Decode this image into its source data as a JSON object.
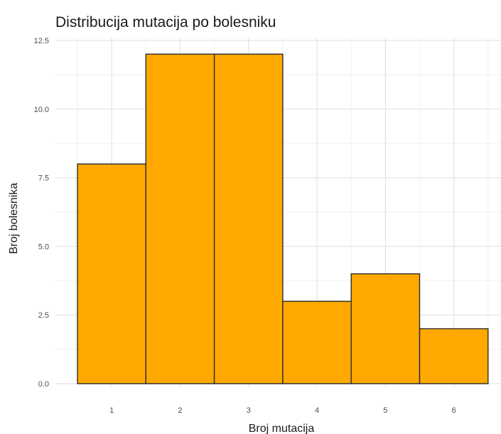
{
  "chart_data": {
    "type": "bar",
    "title": "Distribucija mutacija po bolesniku",
    "xlabel": "Broj mutacija",
    "ylabel": "Broj bolesnika",
    "categories": [
      "1",
      "2",
      "3",
      "4",
      "5",
      "6"
    ],
    "values": [
      8,
      12,
      12,
      3,
      4,
      2
    ],
    "x_ticks": [
      "1",
      "2",
      "3",
      "4",
      "5",
      "6"
    ],
    "y_ticks": [
      "0.0",
      "2.5",
      "5.0",
      "7.5",
      "10.0",
      "12.5"
    ],
    "y_tick_values": [
      0,
      2.5,
      5,
      7.5,
      10,
      12.5
    ],
    "ylim": [
      0,
      12.5
    ],
    "grid": true,
    "legend": "none",
    "colors": {
      "bar_fill": "#FFA900",
      "bar_stroke": "#2b2b2b",
      "grid_major": "#e3e3e3",
      "grid_minor": "#f1f1f1",
      "background": "#ffffff"
    }
  }
}
